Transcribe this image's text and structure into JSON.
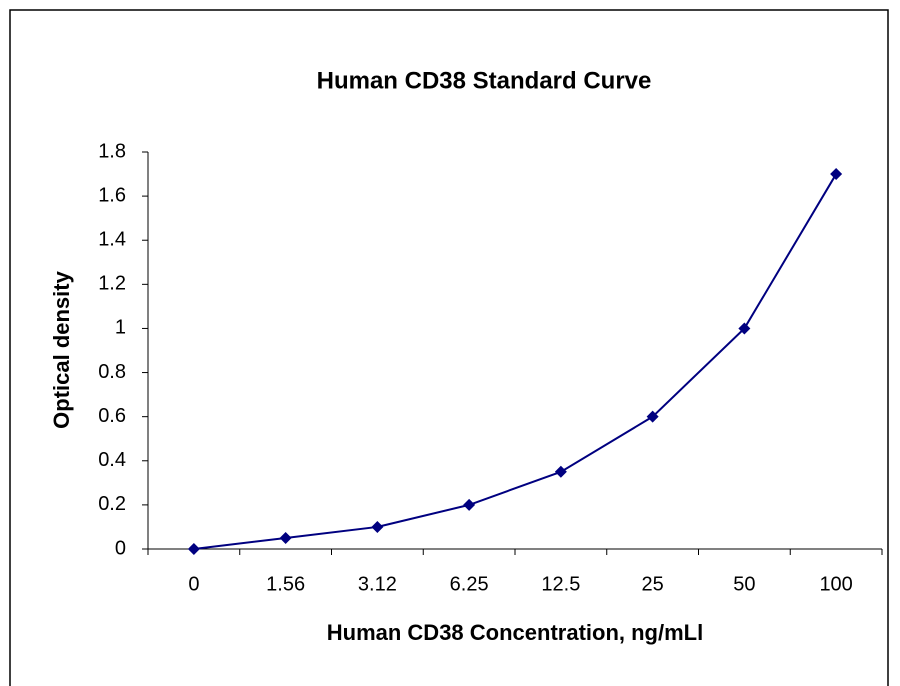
{
  "chart_data": {
    "type": "line",
    "title": "Human CD38 Standard Curve",
    "x_label": "Human CD38 Concentration, ng/mLl",
    "y_label": "Optical density",
    "categories": [
      "0",
      "1.56",
      "3.12",
      "6.25",
      "12.5",
      "25",
      "50",
      "100"
    ],
    "values": [
      0,
      0.05,
      0.1,
      0.2,
      0.35,
      0.6,
      1,
      1.7
    ],
    "color": "#000080",
    "ylim": [
      0,
      1.8
    ],
    "yticks": [
      0,
      0.2,
      0.4,
      0.6,
      0.8,
      1,
      1.2,
      1.4,
      1.6,
      1.8
    ],
    "grid": false
  }
}
